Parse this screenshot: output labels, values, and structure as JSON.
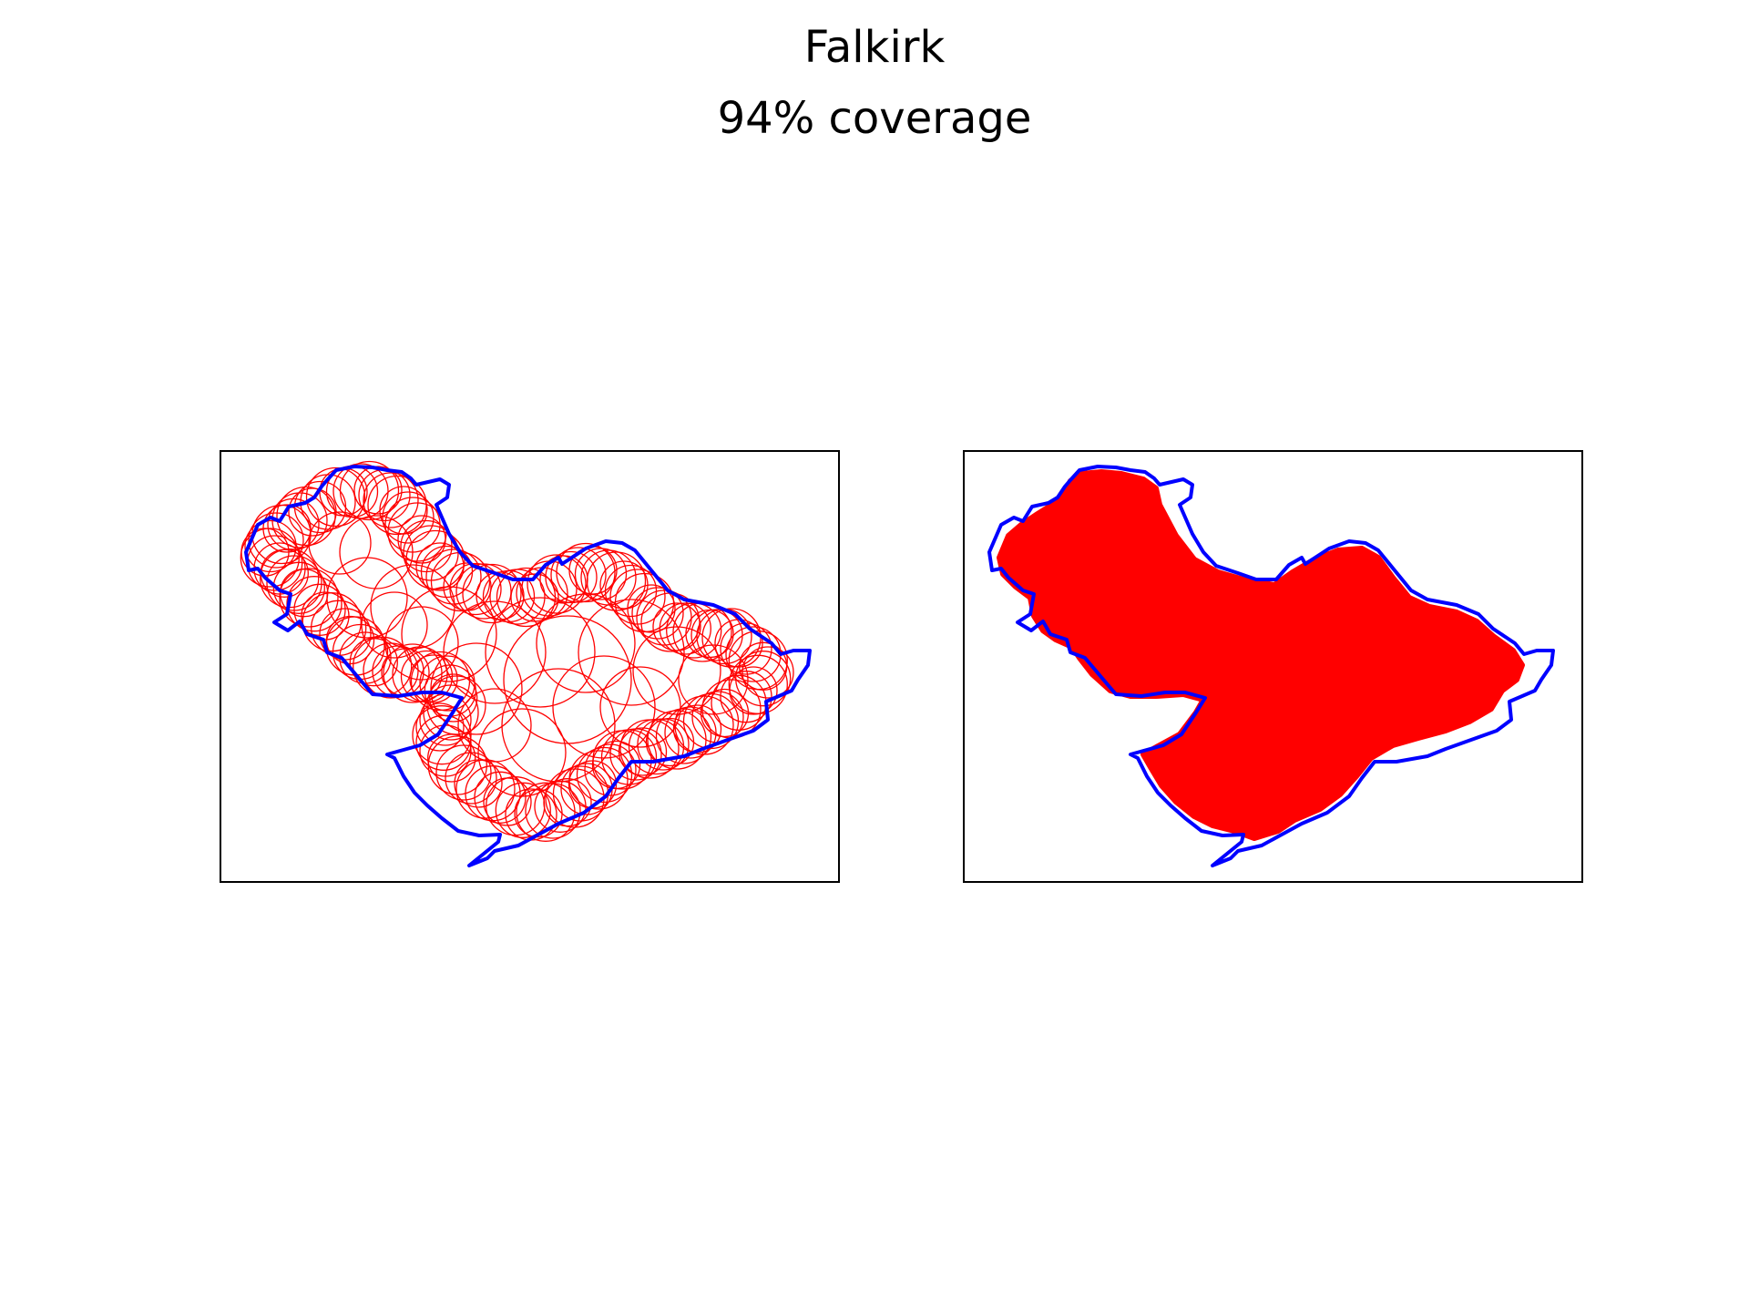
{
  "figure": {
    "title": "Falkirk",
    "subtitle": "94% coverage"
  },
  "colors": {
    "boundary": "#0000ff",
    "coverage": "#ff0000",
    "frame": "#000000",
    "background": "#ffffff"
  },
  "panels": [
    {
      "name": "circles-panel",
      "style": "circle-outlines"
    },
    {
      "name": "filled-coverage-panel",
      "style": "filled-union"
    }
  ],
  "coverage_percent": 94
}
